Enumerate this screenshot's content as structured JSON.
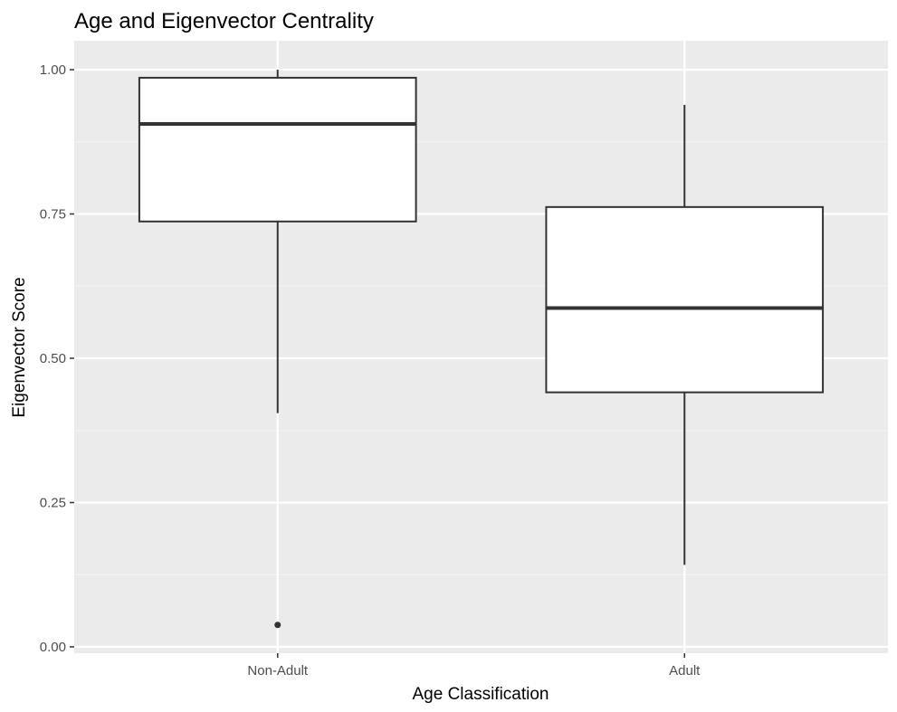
{
  "chart_data": {
    "type": "boxplot",
    "title": "Age and Eigenvector Centrality",
    "xlabel": "Age Classification",
    "ylabel": "Eigenvector Score",
    "ylim": [
      -0.01,
      1.05
    ],
    "yticks": [
      "0.00",
      "0.25",
      "0.50",
      "0.75",
      "1.00"
    ],
    "ytick_values": [
      0,
      0.25,
      0.5,
      0.75,
      1.0
    ],
    "grid": true,
    "legend": "none",
    "categories": [
      "Non-Adult",
      "Adult"
    ],
    "boxes": [
      {
        "category": "Non-Adult",
        "whisker_low": 0.405,
        "q1": 0.737,
        "median": 0.906,
        "q3": 0.986,
        "whisker_high": 1.0,
        "outliers": [
          0.038
        ]
      },
      {
        "category": "Adult",
        "whisker_low": 0.142,
        "q1": 0.441,
        "median": 0.587,
        "q3": 0.762,
        "whisker_high": 0.939,
        "outliers": []
      }
    ]
  },
  "colors": {
    "panel_background": "#ebebeb",
    "grid_major": "#ffffff",
    "grid_minor": "#f5f5f5",
    "box_fill": "#ffffff",
    "box_line": "#333333",
    "tick_text": "#4d4d4d",
    "tick_mark": "#333333"
  }
}
